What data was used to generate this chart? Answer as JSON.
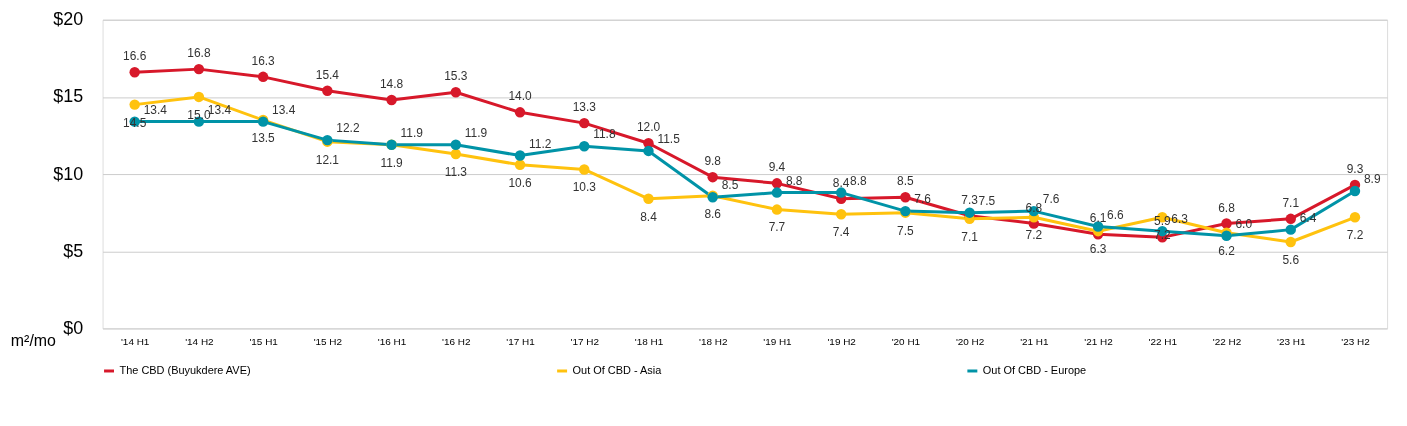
{
  "chart_data": {
    "type": "line",
    "ylabel": "m²/mo",
    "categories": [
      "'14 H1",
      "'14 H2",
      "'15 H1",
      "'15 H2",
      "'16 H1",
      "'16 H2",
      "'17 H1",
      "'17 H2",
      "'18 H1",
      "'18 H2",
      "'19 H1",
      "'19 H2",
      "'20 H1",
      "'20 H2",
      "'21 H1",
      "'21 H2",
      "'22 H1",
      "'22 H2",
      "'23 H1",
      "'23 H2"
    ],
    "series": [
      {
        "name": "The CBD (Buyukdere AVE)",
        "color": "#d7182a",
        "values": [
          16.6,
          16.8,
          16.3,
          15.4,
          14.8,
          15.3,
          14.0,
          13.3,
          12.0,
          9.8,
          9.4,
          8.4,
          8.5,
          7.3,
          6.8,
          6.1,
          5.9,
          6.8,
          7.1,
          9.3
        ],
        "value_labels": [
          "16.6",
          "16.8",
          "16.3",
          "15.4",
          "14.8",
          "15.3",
          "14.0",
          "13.3",
          "12.0",
          "9.8",
          "9.4",
          "8.4",
          "8.5",
          "7.3",
          "6.8",
          "6.1",
          "5.9",
          "6.8",
          "7.1",
          "9.3"
        ]
      },
      {
        "name": "Out Of CBD - Asia",
        "color": "#ffc20e",
        "values": [
          14.5,
          15.0,
          13.5,
          12.1,
          11.9,
          11.3,
          10.6,
          10.3,
          8.4,
          8.6,
          7.7,
          7.4,
          7.5,
          7.1,
          7.2,
          6.3,
          7.2,
          6.2,
          5.6,
          7.2
        ],
        "value_labels": [
          "14.5",
          "15.0",
          "13.5",
          "12.1",
          "11.9",
          "11.3",
          "10.6",
          "10.3",
          "8.4",
          "8.6",
          "7.7",
          "7.4",
          "7.5",
          "7.1",
          "7.2",
          "6.3",
          "7.2",
          "6.2",
          "5.6",
          "7.2"
        ]
      },
      {
        "name": "Out Of CBD - Europe",
        "color": "#0093a7",
        "values": [
          13.4,
          13.4,
          13.4,
          12.2,
          11.9,
          11.9,
          11.2,
          11.8,
          11.5,
          8.5,
          8.8,
          8.8,
          7.6,
          7.5,
          7.6,
          6.6,
          6.3,
          6.0,
          6.4,
          8.9
        ],
        "value_labels": [
          "13.4",
          "13.4",
          "13.4",
          "12.2",
          "11.9",
          "11.9",
          "11.2",
          "11.8",
          "11.5",
          "8.5",
          "8.8",
          "8.8",
          "7.6",
          "7.5",
          "7.6",
          "6.6",
          "6.3",
          "6.0",
          "6.4",
          "8.9"
        ]
      }
    ],
    "ylim": [
      0,
      20
    ],
    "yticks": [
      {
        "value": 0,
        "label": "$0"
      },
      {
        "value": 5,
        "label": "$5"
      },
      {
        "value": 10,
        "label": "$10"
      },
      {
        "value": 15,
        "label": "$15"
      },
      {
        "value": 20,
        "label": "$20"
      }
    ],
    "grid": "y",
    "legend": "bottom",
    "marker": "circle",
    "line_style": "solid"
  }
}
